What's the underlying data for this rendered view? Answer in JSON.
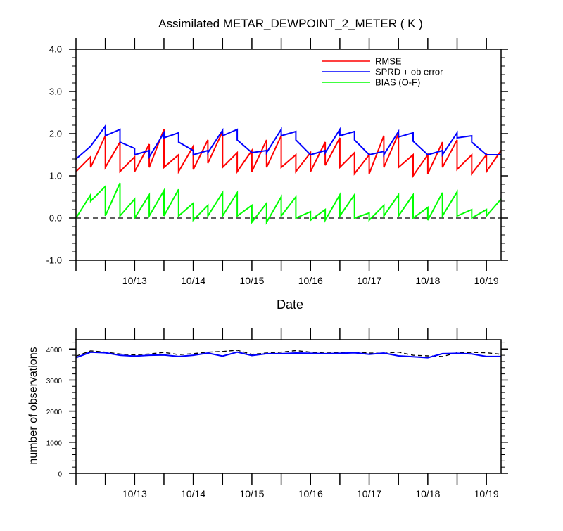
{
  "chart_data": [
    {
      "type": "line",
      "title": "Assimilated METAR_DEWPOINT_2_METER ( K )",
      "xlabel": "Date",
      "ylabel": "",
      "ylim": [
        -1.0,
        4.0
      ],
      "yticks": [
        "4.0",
        "3.0",
        "2.0",
        "1.0",
        "0.0",
        "-1.0"
      ],
      "xticks": [
        "10/13",
        "10/14",
        "10/15",
        "10/16",
        "10/17",
        "10/18",
        "10/19"
      ],
      "xrange": [
        "10/12 12Z",
        "10/19 18Z"
      ],
      "legend_position": "top-right",
      "reference_line": {
        "y": 0.0,
        "style": "dashed"
      },
      "series": [
        {
          "name": "RMSE",
          "color": "#ff0000",
          "points": [
            [
              "10/12 12Z",
              1.1
            ],
            [
              "10/12 18Z",
              1.45
            ],
            [
              "10/12 18Z",
              1.2
            ],
            [
              "10/13 00Z",
              1.95
            ],
            [
              "10/13 00Z",
              1.2
            ],
            [
              "10/13 06Z",
              1.8
            ],
            [
              "10/13 06Z",
              1.1
            ],
            [
              "10/13 12Z",
              1.45
            ],
            [
              "10/13 12Z",
              1.1
            ],
            [
              "10/13 18Z",
              1.75
            ],
            [
              "10/13 18Z",
              1.2
            ],
            [
              "10/14 00Z",
              2.1
            ],
            [
              "10/14 00Z",
              1.2
            ],
            [
              "10/14 06Z",
              1.5
            ],
            [
              "10/14 06Z",
              1.1
            ],
            [
              "10/14 12Z",
              1.7
            ],
            [
              "10/14 12Z",
              1.15
            ],
            [
              "10/14 18Z",
              1.85
            ],
            [
              "10/14 18Z",
              1.3
            ],
            [
              "10/15 00Z",
              2.05
            ],
            [
              "10/15 00Z",
              1.2
            ],
            [
              "10/15 06Z",
              1.55
            ],
            [
              "10/15 06Z",
              1.1
            ],
            [
              "10/15 12Z",
              1.6
            ],
            [
              "10/15 12Z",
              1.1
            ],
            [
              "10/15 18Z",
              1.85
            ],
            [
              "10/15 18Z",
              1.2
            ],
            [
              "10/16 00Z",
              1.95
            ],
            [
              "10/16 00Z",
              1.2
            ],
            [
              "10/16 06Z",
              1.5
            ],
            [
              "10/16 06Z",
              1.1
            ],
            [
              "10/16 12Z",
              1.55
            ],
            [
              "10/16 12Z",
              1.1
            ],
            [
              "10/16 18Z",
              1.8
            ],
            [
              "10/16 18Z",
              1.25
            ],
            [
              "10/17 00Z",
              1.9
            ],
            [
              "10/17 00Z",
              1.2
            ],
            [
              "10/17 06Z",
              1.55
            ],
            [
              "10/17 06Z",
              1.05
            ],
            [
              "10/17 12Z",
              1.5
            ],
            [
              "10/17 12Z",
              1.05
            ],
            [
              "10/17 18Z",
              1.95
            ],
            [
              "10/17 18Z",
              1.2
            ],
            [
              "10/18 00Z",
              2.0
            ],
            [
              "10/18 00Z",
              1.2
            ],
            [
              "10/18 06Z",
              1.5
            ],
            [
              "10/18 06Z",
              1.0
            ],
            [
              "10/18 12Z",
              1.5
            ],
            [
              "10/18 12Z",
              1.05
            ],
            [
              "10/18 18Z",
              1.8
            ],
            [
              "10/18 18Z",
              1.2
            ],
            [
              "10/19 00Z",
              1.85
            ],
            [
              "10/19 00Z",
              1.15
            ],
            [
              "10/19 06Z",
              1.5
            ],
            [
              "10/19 06Z",
              1.05
            ],
            [
              "10/19 12Z",
              1.5
            ],
            [
              "10/19 12Z",
              1.1
            ],
            [
              "10/19 18Z",
              1.6
            ]
          ]
        },
        {
          "name": "SPRD + ob error",
          "color": "#0000ff",
          "points": [
            [
              "10/12 12Z",
              1.4
            ],
            [
              "10/12 18Z",
              1.7
            ],
            [
              "10/13 00Z",
              2.18
            ],
            [
              "10/13 00Z",
              1.95
            ],
            [
              "10/13 06Z",
              2.1
            ],
            [
              "10/13 06Z",
              1.8
            ],
            [
              "10/13 12Z",
              1.65
            ],
            [
              "10/13 12Z",
              1.5
            ],
            [
              "10/13 18Z",
              1.6
            ],
            [
              "10/13 18Z",
              1.45
            ],
            [
              "10/14 00Z",
              2.02
            ],
            [
              "10/14 00Z",
              1.9
            ],
            [
              "10/14 06Z",
              2.02
            ],
            [
              "10/14 06Z",
              1.8
            ],
            [
              "10/14 12Z",
              1.6
            ],
            [
              "10/14 12Z",
              1.5
            ],
            [
              "10/14 18Z",
              1.6
            ],
            [
              "10/14 18Z",
              1.55
            ],
            [
              "10/15 00Z",
              2.08
            ],
            [
              "10/15 00Z",
              1.95
            ],
            [
              "10/15 06Z",
              2.1
            ],
            [
              "10/15 06Z",
              1.85
            ],
            [
              "10/15 12Z",
              1.55
            ],
            [
              "10/15 18Z",
              1.6
            ],
            [
              "10/15 18Z",
              1.55
            ],
            [
              "10/16 00Z",
              2.1
            ],
            [
              "10/16 00Z",
              1.95
            ],
            [
              "10/16 06Z",
              2.05
            ],
            [
              "10/16 06Z",
              1.85
            ],
            [
              "10/16 12Z",
              1.5
            ],
            [
              "10/16 18Z",
              1.6
            ],
            [
              "10/16 18Z",
              1.55
            ],
            [
              "10/17 00Z",
              2.1
            ],
            [
              "10/17 00Z",
              1.95
            ],
            [
              "10/17 06Z",
              2.05
            ],
            [
              "10/17 06Z",
              1.85
            ],
            [
              "10/17 12Z",
              1.5
            ],
            [
              "10/17 18Z",
              1.58
            ],
            [
              "10/17 18Z",
              1.5
            ],
            [
              "10/18 00Z",
              2.05
            ],
            [
              "10/18 00Z",
              1.92
            ],
            [
              "10/18 06Z",
              2.02
            ],
            [
              "10/18 06Z",
              1.82
            ],
            [
              "10/18 12Z",
              1.5
            ],
            [
              "10/18 18Z",
              1.6
            ],
            [
              "10/18 18Z",
              1.5
            ],
            [
              "10/19 00Z",
              2.02
            ],
            [
              "10/19 00Z",
              1.9
            ],
            [
              "10/19 06Z",
              1.95
            ],
            [
              "10/19 06Z",
              1.8
            ],
            [
              "10/19 12Z",
              1.5
            ],
            [
              "10/19 18Z",
              1.5
            ]
          ]
        },
        {
          "name": "BIAS (O-F)",
          "color": "#00ff00",
          "points": [
            [
              "10/12 12Z",
              0.0
            ],
            [
              "10/12 18Z",
              0.55
            ],
            [
              "10/12 18Z",
              0.4
            ],
            [
              "10/13 00Z",
              0.75
            ],
            [
              "10/13 00Z",
              0.05
            ],
            [
              "10/13 06Z",
              0.83
            ],
            [
              "10/13 06Z",
              0.05
            ],
            [
              "10/13 12Z",
              0.45
            ],
            [
              "10/13 12Z",
              0.0
            ],
            [
              "10/13 18Z",
              0.55
            ],
            [
              "10/13 18Z",
              0.05
            ],
            [
              "10/14 00Z",
              0.65
            ],
            [
              "10/14 00Z",
              0.05
            ],
            [
              "10/14 06Z",
              0.68
            ],
            [
              "10/14 06Z",
              0.05
            ],
            [
              "10/14 12Z",
              0.35
            ],
            [
              "10/14 12Z",
              -0.05
            ],
            [
              "10/14 18Z",
              0.3
            ],
            [
              "10/14 18Z",
              0.05
            ],
            [
              "10/15 00Z",
              0.6
            ],
            [
              "10/15 00Z",
              0.05
            ],
            [
              "10/15 06Z",
              0.6
            ],
            [
              "10/15 06Z",
              0.05
            ],
            [
              "10/15 12Z",
              0.3
            ],
            [
              "10/15 12Z",
              -0.1
            ],
            [
              "10/15 18Z",
              0.35
            ],
            [
              "10/15 18Z",
              -0.1
            ],
            [
              "10/16 00Z",
              0.5
            ],
            [
              "10/16 00Z",
              0.05
            ],
            [
              "10/16 06Z",
              0.5
            ],
            [
              "10/16 06Z",
              0.0
            ],
            [
              "10/16 12Z",
              0.15
            ],
            [
              "10/16 12Z",
              -0.05
            ],
            [
              "10/16 18Z",
              0.2
            ],
            [
              "10/16 18Z",
              -0.05
            ],
            [
              "10/17 00Z",
              0.55
            ],
            [
              "10/17 00Z",
              0.05
            ],
            [
              "10/17 06Z",
              0.55
            ],
            [
              "10/17 06Z",
              0.0
            ],
            [
              "10/17 12Z",
              0.12
            ],
            [
              "10/17 12Z",
              -0.05
            ],
            [
              "10/17 18Z",
              0.3
            ],
            [
              "10/17 18Z",
              0.05
            ],
            [
              "10/18 00Z",
              0.55
            ],
            [
              "10/18 00Z",
              0.05
            ],
            [
              "10/18 06Z",
              0.55
            ],
            [
              "10/18 06Z",
              0.0
            ],
            [
              "10/18 12Z",
              0.25
            ],
            [
              "10/18 12Z",
              -0.05
            ],
            [
              "10/18 18Z",
              0.6
            ],
            [
              "10/18 18Z",
              0.05
            ],
            [
              "10/19 00Z",
              0.62
            ],
            [
              "10/19 00Z",
              0.05
            ],
            [
              "10/19 06Z",
              0.2
            ],
            [
              "10/19 06Z",
              0.0
            ],
            [
              "10/19 12Z",
              0.2
            ],
            [
              "10/19 12Z",
              0.05
            ],
            [
              "10/19 18Z",
              0.45
            ]
          ]
        }
      ]
    },
    {
      "type": "line",
      "title": "",
      "xlabel": "",
      "ylabel": "number of observations",
      "ylim": [
        0,
        4300
      ],
      "yticks": [
        "4000",
        "3000",
        "2000",
        "1000",
        "0"
      ],
      "xticks": [
        "10/13",
        "10/14",
        "10/15",
        "10/16",
        "10/17",
        "10/18",
        "10/19"
      ],
      "xrange": [
        "10/12 12Z",
        "10/19 18Z"
      ],
      "series": [
        {
          "style": "dashed",
          "color": "#000000",
          "x": [
            "10/12 12Z",
            "10/12 18Z",
            "10/13 00Z",
            "10/13 06Z",
            "10/13 12Z",
            "10/13 18Z",
            "10/14 00Z",
            "10/14 06Z",
            "10/14 12Z",
            "10/14 18Z",
            "10/15 00Z",
            "10/15 06Z",
            "10/15 12Z",
            "10/15 18Z",
            "10/16 00Z",
            "10/16 06Z",
            "10/16 12Z",
            "10/16 18Z",
            "10/17 00Z",
            "10/17 06Z",
            "10/17 12Z",
            "10/17 18Z",
            "10/18 00Z",
            "10/18 06Z",
            "10/18 12Z",
            "10/18 18Z",
            "10/19 00Z",
            "10/19 06Z",
            "10/19 12Z",
            "10/19 18Z"
          ],
          "values": [
            3770,
            3940,
            3900,
            3840,
            3810,
            3840,
            3890,
            3820,
            3850,
            3900,
            3920,
            3960,
            3830,
            3870,
            3900,
            3950,
            3900,
            3870,
            3880,
            3900,
            3870,
            3860,
            3900,
            3800,
            3780,
            3760,
            3880,
            3890,
            3880,
            3830
          ]
        },
        {
          "style": "solid",
          "color": "#0000ff",
          "x": [
            "10/12 12Z",
            "10/12 18Z",
            "10/13 00Z",
            "10/13 06Z",
            "10/13 12Z",
            "10/13 18Z",
            "10/14 00Z",
            "10/14 06Z",
            "10/14 12Z",
            "10/14 18Z",
            "10/15 00Z",
            "10/15 06Z",
            "10/15 12Z",
            "10/15 18Z",
            "10/16 00Z",
            "10/16 06Z",
            "10/16 12Z",
            "10/16 18Z",
            "10/17 00Z",
            "10/17 06Z",
            "10/17 12Z",
            "10/17 18Z",
            "10/18 00Z",
            "10/18 06Z",
            "10/18 12Z",
            "10/18 18Z",
            "10/19 00Z",
            "10/19 06Z",
            "10/19 12Z",
            "10/19 18Z"
          ],
          "values": [
            3720,
            3900,
            3880,
            3800,
            3770,
            3800,
            3810,
            3760,
            3800,
            3870,
            3770,
            3900,
            3790,
            3850,
            3850,
            3870,
            3860,
            3850,
            3860,
            3880,
            3830,
            3870,
            3780,
            3750,
            3720,
            3850,
            3860,
            3840,
            3760,
            3760
          ]
        }
      ]
    }
  ]
}
